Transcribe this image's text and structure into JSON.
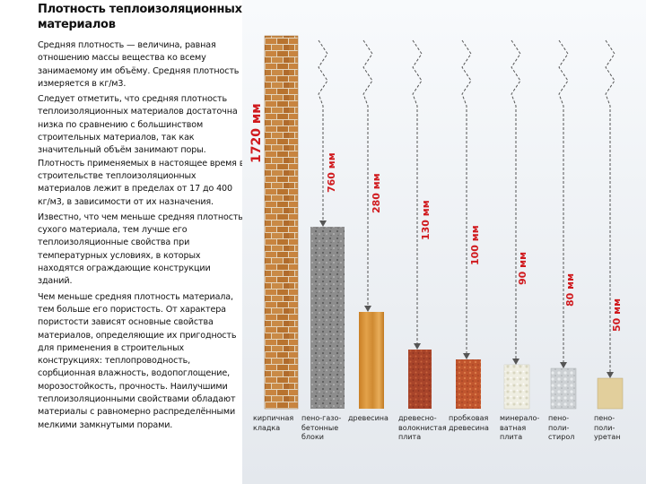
{
  "title": "Плотность теплоизоляционных материалов",
  "paragraphs": [
    "Средняя плотность — величина, равная отношению массы вещества ко всему занимаемому им объёму. Средняя плотность измеряется в кг/м3.",
    "Следует отметить, что средняя плотность теплоизоляционных материалов достаточна низка по сравнению с большинством строительных материалов, так как значительный объём занимают поры. Плотность применяемых в настоящее время в строительстве теплоизоляционных материалов лежит в пределах от 17 до 400 кг/м3, в зависимости от их назначения.",
    "Известно, что чем меньше средняя плотность сухого материала, тем лучше его теплоизоляционные свойства при температурных условиях, в которых находятся ограждающие конструкции зданий.",
    "Чем меньше средняя плотность материала, тем больше его пористость. От характера пористости зависят основные свойства материалов, определяющие их пригодность для применения в строительных конструкциях: теплопроводность, сорбционная влажность, водопоглощение, морозостойкость, прочность. Наилучшими теплоизоляционными свойствами обладают материалы с равномерно распределёнными мелкими замкнутыми порами."
  ],
  "materials": [
    {
      "thickness": "1720 мм",
      "label": "кирпичная\nкладка"
    },
    {
      "thickness": "760 мм",
      "label": "пено-газо-\nбетонные\nблоки"
    },
    {
      "thickness": "280 мм",
      "label": "древесина"
    },
    {
      "thickness": "130 мм",
      "label": "древесно-\nволокнистая\nплита"
    },
    {
      "thickness": "100 мм",
      "label": "пробковая\nдревесина"
    },
    {
      "thickness": "90 мм",
      "label": "минерало-\nватная\nплита"
    },
    {
      "thickness": "80 мм",
      "label": "пено-\nполи-\nстирол"
    },
    {
      "thickness": "50 мм",
      "label": "пено-\nполи-\nуретан"
    }
  ],
  "colors": {
    "arrow_text": "#d0191d",
    "brick": "#c8843f",
    "aerated": "#8a8a8a",
    "wood": "#d99232",
    "fiberboard": "#a8442a",
    "cork": "#c0552e",
    "mineral": "#e8e6d6",
    "eps": "#c8cccf",
    "pur": "#e2cf9c"
  }
}
